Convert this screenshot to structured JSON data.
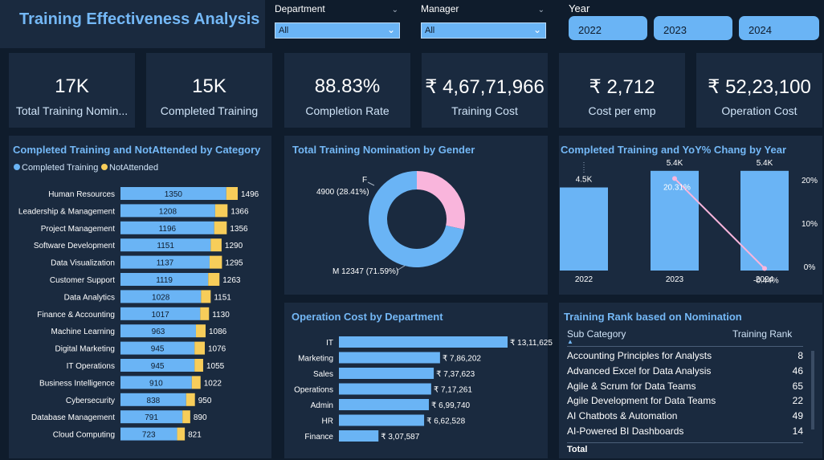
{
  "header": {
    "title": "Training Effectiveness Analysis"
  },
  "filters": {
    "department": {
      "label": "Department",
      "value": "All"
    },
    "manager": {
      "label": "Manager",
      "value": "All"
    },
    "year": {
      "label": "Year",
      "options": [
        "2022",
        "2023",
        "2024"
      ]
    }
  },
  "kpis": [
    {
      "value": "17K",
      "label": "Total Training Nomin..."
    },
    {
      "value": "15K",
      "label": "Completed Training"
    },
    {
      "value": "88.83%",
      "label": "Completion Rate"
    },
    {
      "value": "₹ 4,67,71,966",
      "label": "Training Cost"
    },
    {
      "value": "₹ 2,712",
      "label": "Cost per emp"
    },
    {
      "value": "₹ 52,23,100",
      "label": "Operation Cost"
    }
  ],
  "colors": {
    "primary": "#6ab4f5",
    "secondary": "#f7cd5a",
    "pink": "#f9b5dc",
    "title": "#74b8f6"
  },
  "chart_data": [
    {
      "type": "bar",
      "title": "Completed Training and NotAttended by Category",
      "legend": [
        "Completed Training",
        "NotAttended"
      ],
      "legend_position": "top-left",
      "orientation": "horizontal",
      "stacked": true,
      "categories": [
        "Human Resources",
        "Leadership & Management",
        "Project Management",
        "Software Development",
        "Data Visualization",
        "Customer Support",
        "Data Analytics",
        "Finance & Accounting",
        "Machine Learning",
        "Digital Marketing",
        "IT Operations",
        "Business Intelligence",
        "Cybersecurity",
        "Database Management",
        "Cloud Computing"
      ],
      "series": [
        {
          "name": "Completed Training",
          "values": [
            1350,
            1208,
            1196,
            1151,
            1137,
            1119,
            1028,
            1017,
            963,
            945,
            945,
            910,
            838,
            791,
            723
          ]
        },
        {
          "name": "NotAttended",
          "values": [
            146,
            158,
            160,
            139,
            158,
            144,
            123,
            113,
            123,
            131,
            110,
            112,
            112,
            99,
            98
          ]
        }
      ],
      "totals": [
        "1496",
        "1366",
        "1356",
        "1290",
        "1295",
        "1263",
        "1151",
        "1130",
        "1086",
        "1076",
        "1055",
        "1022",
        "950",
        "890",
        "821"
      ]
    },
    {
      "type": "pie",
      "title": "Total Training Nomination by Gender",
      "donut": true,
      "slices": [
        {
          "name": "F",
          "value": 4900,
          "label": "4900 (28.41%)"
        },
        {
          "name": "M",
          "value": 12347,
          "label": "M 12347 (71.59%)"
        }
      ]
    },
    {
      "type": "bar",
      "title": "Completed Training and YoY% Chang by Year",
      "categories": [
        "2022",
        "2023",
        "2024"
      ],
      "values": [
        4500,
        5400,
        5400
      ],
      "value_labels": [
        "4.5K",
        "5.4K",
        "5.4K"
      ],
      "ylim": [
        0,
        6000
      ],
      "line_series": {
        "values": [
          null,
          20.31,
          -0.44
        ],
        "labels": [
          "",
          "20.31%",
          "-0.44%"
        ],
        "y2_ticks": [
          "20%",
          "10%",
          "0%"
        ],
        "y2lim": [
          -3,
          24
        ]
      }
    },
    {
      "type": "bar",
      "title": "Operation Cost by Department",
      "orientation": "horizontal",
      "categories": [
        "IT",
        "Marketing",
        "Sales",
        "Operations",
        "Admin",
        "HR",
        "Finance"
      ],
      "values": [
        1311625,
        786202,
        737623,
        717261,
        699740,
        662528,
        307587
      ],
      "value_labels": [
        "₹ 13,11,625",
        "₹ 7,86,202",
        "₹ 7,37,623",
        "₹ 7,17,261",
        "₹ 6,99,740",
        "₹ 6,62,528",
        "₹ 3,07,587"
      ]
    },
    {
      "type": "table",
      "title": "Training Rank based on Nomination",
      "columns": [
        "Sub Category",
        "Training Rank"
      ],
      "rows": [
        [
          "Accounting Principles for Analysts",
          "8"
        ],
        [
          "Advanced Excel for Data Analysis",
          "46"
        ],
        [
          "Agile & Scrum for Data Teams",
          "65"
        ],
        [
          "Agile Development for Data Teams",
          "22"
        ],
        [
          "AI Chatbots & Automation",
          "49"
        ],
        [
          "AI-Powered BI Dashboards",
          "14"
        ]
      ],
      "footer": "Total"
    }
  ]
}
